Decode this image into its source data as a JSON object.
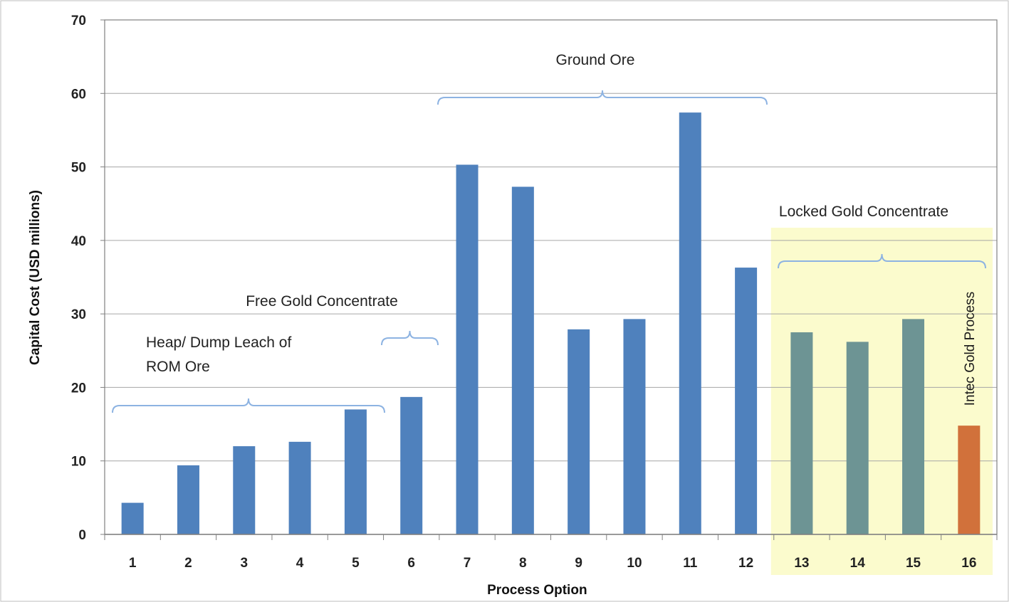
{
  "chart_data": {
    "type": "bar",
    "xlabel": "Process Option",
    "ylabel": "Capital Cost (USD millions)",
    "ylim": [
      0,
      70
    ],
    "yticks": [
      0,
      10,
      20,
      30,
      40,
      50,
      60,
      70
    ],
    "grid": true,
    "categories": [
      "1",
      "2",
      "3",
      "4",
      "5",
      "6",
      "7",
      "8",
      "9",
      "10",
      "11",
      "12",
      "13",
      "14",
      "15",
      "16"
    ],
    "values": [
      4.3,
      9.4,
      12.0,
      12.6,
      17.0,
      18.7,
      50.3,
      47.3,
      27.9,
      29.3,
      57.4,
      36.3,
      27.5,
      26.2,
      29.3,
      14.8
    ],
    "colors": {
      "blue": "#4f81bd",
      "teal": "#6d9494",
      "orange": "#d1713b",
      "highlight": "#fbfbcd",
      "bracket": "#8db3e2",
      "grid": "#a6a6a6"
    },
    "bar_colors": [
      "blue",
      "blue",
      "blue",
      "blue",
      "blue",
      "blue",
      "blue",
      "blue",
      "blue",
      "blue",
      "blue",
      "blue",
      "teal",
      "teal",
      "teal",
      "orange"
    ],
    "highlight_categories": [
      "13",
      "16"
    ],
    "groups": [
      {
        "label_lines": [
          "Heap/ Dump  Leach of",
          "ROM Ore"
        ],
        "from": "1",
        "to": "5"
      },
      {
        "label_lines": [
          "Free Gold  Concentrate"
        ],
        "from": "6",
        "to": "6"
      },
      {
        "label_lines": [
          "Ground Ore"
        ],
        "from": "7",
        "to": "12"
      },
      {
        "label_lines": [
          "Locked Gold Concentrate"
        ],
        "from": "13",
        "to": "16"
      }
    ],
    "bar_annotation": {
      "category": "16",
      "text": "Intec Gold Process"
    }
  }
}
